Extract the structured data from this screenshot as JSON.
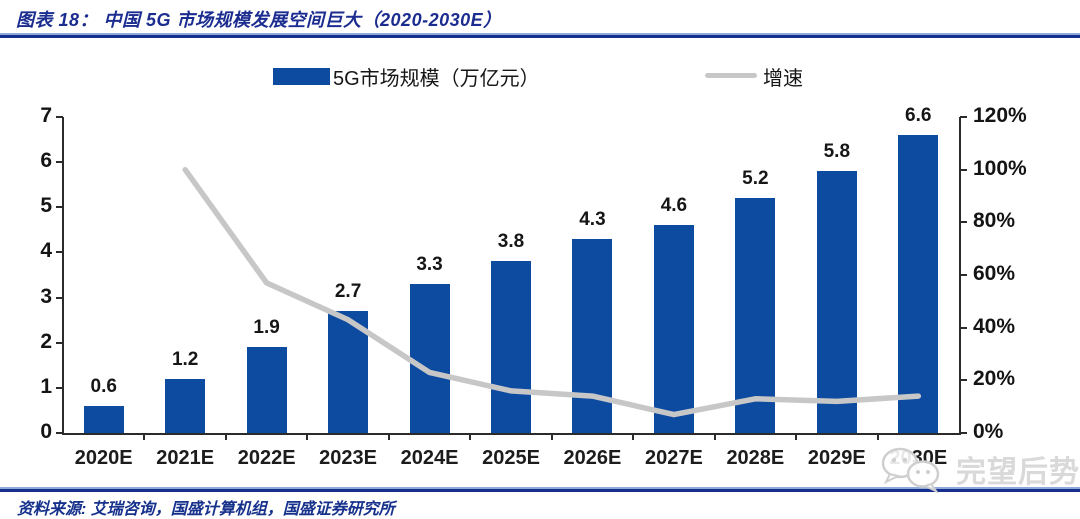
{
  "header": {
    "title": "图表 18：  中国 5G 市场规模发展空间巨大（2020-2030E）"
  },
  "legend": {
    "bar_label": "5G市场规模（万亿元）",
    "line_label": "增速"
  },
  "chart_data": {
    "type": "bar",
    "title": "中国 5G 市场规模发展空间巨大（2020-2030E）",
    "categories": [
      "2020E",
      "2021E",
      "2022E",
      "2023E",
      "2024E",
      "2025E",
      "2026E",
      "2027E",
      "2028E",
      "2029E",
      "2030E"
    ],
    "series": [
      {
        "name": "5G市场规模（万亿元）",
        "type": "bar",
        "axis": "left",
        "color": "#0d4ba1",
        "values": [
          0.6,
          1.2,
          1.9,
          2.7,
          3.3,
          3.8,
          4.3,
          4.6,
          5.2,
          5.8,
          6.6
        ]
      },
      {
        "name": "增速",
        "type": "line",
        "axis": "right",
        "color": "#c7c7c7",
        "unit": "%",
        "values": [
          null,
          100,
          57,
          43,
          23,
          16,
          14,
          7,
          13,
          12,
          14
        ]
      }
    ],
    "left_axis": {
      "min": 0,
      "max": 7,
      "ticks": [
        "0",
        "1",
        "2",
        "3",
        "4",
        "5",
        "6",
        "7"
      ]
    },
    "right_axis": {
      "min": 0,
      "max": 120,
      "ticks": [
        "0%",
        "20%",
        "40%",
        "60%",
        "80%",
        "100%",
        "120%"
      ]
    },
    "grid": false,
    "legend_position": "top"
  },
  "source": {
    "text": "资料来源: 艾瑞咨询，国盛计算机组，国盛证券研究所"
  },
  "watermark": {
    "text": "完望后势",
    "icon": "wechat-icon"
  }
}
